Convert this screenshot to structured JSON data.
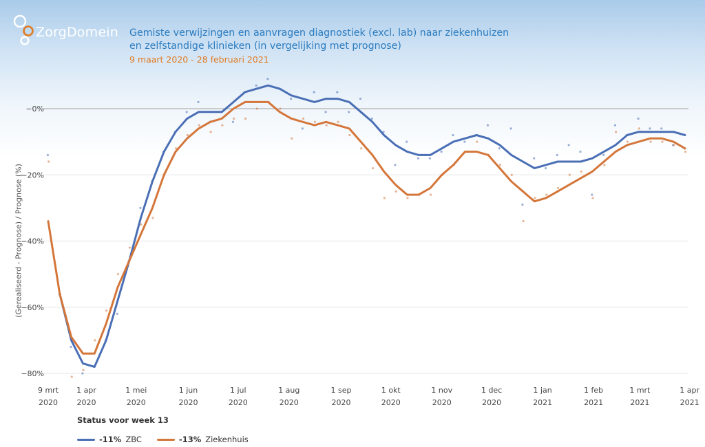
{
  "header": {
    "logo_text": "ZorgDomein",
    "title_line1": "Gemiste verwijzingen en aanvragen diagnostiek (excl. lab) naar ziekenhuizen",
    "title_line2": "en zelfstandige klinieken (in vergelijking met prognose)",
    "subtitle": "9 maart 2020 - 28 februari 2021"
  },
  "footer": {
    "status_label": "Status voor week 13",
    "legend": [
      {
        "pct": "-11%",
        "name": "ZBC"
      },
      {
        "pct": "-13%",
        "name": "Ziekenhuis"
      }
    ]
  },
  "colors": {
    "zbc": "#4a6fb5",
    "ziekenhuis": "#d4763a",
    "title": "#2a7bbf",
    "subtitle": "#e07b22",
    "logo_ring": "#e07b22"
  },
  "chart_data": {
    "type": "line",
    "title": "Gemiste verwijzingen en aanvragen diagnostiek (excl. lab) naar ziekenhuizen en zelfstandige klinieken (in vergelijking met prognose)",
    "ylabel": "(Gerealiseerd - Prognose) / Prognose (%)",
    "xlabel": "",
    "ylim": [
      -82,
      2
    ],
    "yticks": [
      0,
      -20,
      -40,
      -60,
      -80
    ],
    "ytick_labels": [
      "−0%",
      "−20%",
      "−40%",
      "−60%",
      "−80%"
    ],
    "xlim": [
      0,
      55.3
    ],
    "xticks": [
      {
        "week": 0,
        "line1": "9 mrt",
        "line2": "2020"
      },
      {
        "week": 3.3,
        "line1": "1 apr",
        "line2": "2020"
      },
      {
        "week": 7.6,
        "line1": "1 mei",
        "line2": "2020"
      },
      {
        "week": 12.1,
        "line1": "1 jun",
        "line2": "2020"
      },
      {
        "week": 16.4,
        "line1": "1 jul",
        "line2": "2020"
      },
      {
        "week": 20.8,
        "line1": "1 aug",
        "line2": "2020"
      },
      {
        "week": 25.3,
        "line1": "1 sep",
        "line2": "2020"
      },
      {
        "week": 29.6,
        "line1": "1 okt",
        "line2": "2020"
      },
      {
        "week": 34.0,
        "line1": "1 nov",
        "line2": "2020"
      },
      {
        "week": 38.3,
        "line1": "1 dec",
        "line2": "2020"
      },
      {
        "week": 42.7,
        "line1": "1 jan",
        "line2": "2021"
      },
      {
        "week": 47.1,
        "line1": "1 feb",
        "line2": "2021"
      },
      {
        "week": 51.1,
        "line1": "1 mrt",
        "line2": "2021"
      },
      {
        "week": 55.4,
        "line1": "1 apr",
        "line2": "2021"
      }
    ],
    "x": [
      0,
      1,
      2,
      3,
      4,
      5,
      6,
      7,
      8,
      9,
      10,
      11,
      12,
      13,
      14,
      15,
      16,
      17,
      18,
      19,
      20,
      21,
      22,
      23,
      24,
      25,
      26,
      27,
      28,
      29,
      30,
      31,
      32,
      33,
      34,
      35,
      36,
      37,
      38,
      39,
      40,
      41,
      42,
      43,
      44,
      45,
      46,
      47,
      48,
      49,
      50,
      51,
      52,
      53,
      54,
      55
    ],
    "series": [
      {
        "name": "ZBC",
        "values": [
          null,
          -56,
          -70,
          -77,
          -78,
          -70,
          -58,
          -46,
          -33,
          -22,
          -13,
          -7,
          -3,
          -1,
          -1,
          -1,
          2,
          5,
          6,
          7,
          6,
          4,
          3,
          2,
          3,
          3,
          2,
          -1,
          -4,
          -8,
          -11,
          -13,
          -14,
          -14,
          -12,
          -10,
          -9,
          -8,
          -9,
          -11,
          -14,
          -16,
          -18,
          -17,
          -16,
          -16,
          -16,
          -15,
          -13,
          -11,
          -8,
          -7,
          -7,
          -7,
          -7,
          -8
        ],
        "points": [
          -14,
          -56,
          -72,
          -80,
          -78,
          -70,
          -62,
          -46,
          -30,
          -22,
          -13,
          -7,
          -1,
          2,
          -4,
          -1,
          -4,
          5,
          7,
          9,
          6,
          3,
          -6,
          5,
          -1,
          5,
          -1,
          3,
          -3,
          -7,
          -17,
          -10,
          -15,
          -15,
          -13,
          -8,
          -10,
          -8,
          -5,
          -12,
          -6,
          -29,
          -15,
          -18,
          -14,
          -11,
          -13,
          -26,
          -14,
          -5,
          -8,
          -3,
          -6,
          -6,
          -11,
          -12
        ]
      },
      {
        "name": "Ziekenhuis",
        "values": [
          -34,
          -56,
          -69,
          -74,
          -74,
          -65,
          -54,
          -46,
          -38,
          -30,
          -20,
          -13,
          -9,
          -6,
          -4,
          -3,
          0,
          2,
          2,
          2,
          -1,
          -3,
          -4,
          -5,
          -4,
          -5,
          -6,
          -10,
          -14,
          -19,
          -23,
          -26,
          -26,
          -24,
          -20,
          -17,
          -13,
          -13,
          -14,
          -18,
          -22,
          -25,
          -28,
          -27,
          -25,
          -23,
          -21,
          -19,
          -16,
          -13,
          -11,
          -10,
          -9,
          -9,
          -10,
          -12
        ],
        "points": [
          -16,
          -56,
          -81,
          -79,
          -70,
          -61,
          -50,
          -42,
          -35,
          -33,
          -20,
          -12,
          -8,
          -5,
          -7,
          -5,
          -3,
          -3,
          0,
          2,
          0,
          -9,
          -3,
          -4,
          -5,
          -4,
          -8,
          -12,
          -18,
          -27,
          -25,
          -27,
          -26,
          -26,
          -20,
          -17,
          -13,
          -10,
          -14,
          -17,
          -20,
          -34,
          -27,
          -26,
          -24,
          -20,
          -19,
          -27,
          -17,
          -7,
          -10,
          -6,
          -10,
          -10,
          -11,
          -13
        ]
      }
    ],
    "current_status": {
      "ZBC": -11,
      "Ziekenhuis": -13
    }
  }
}
